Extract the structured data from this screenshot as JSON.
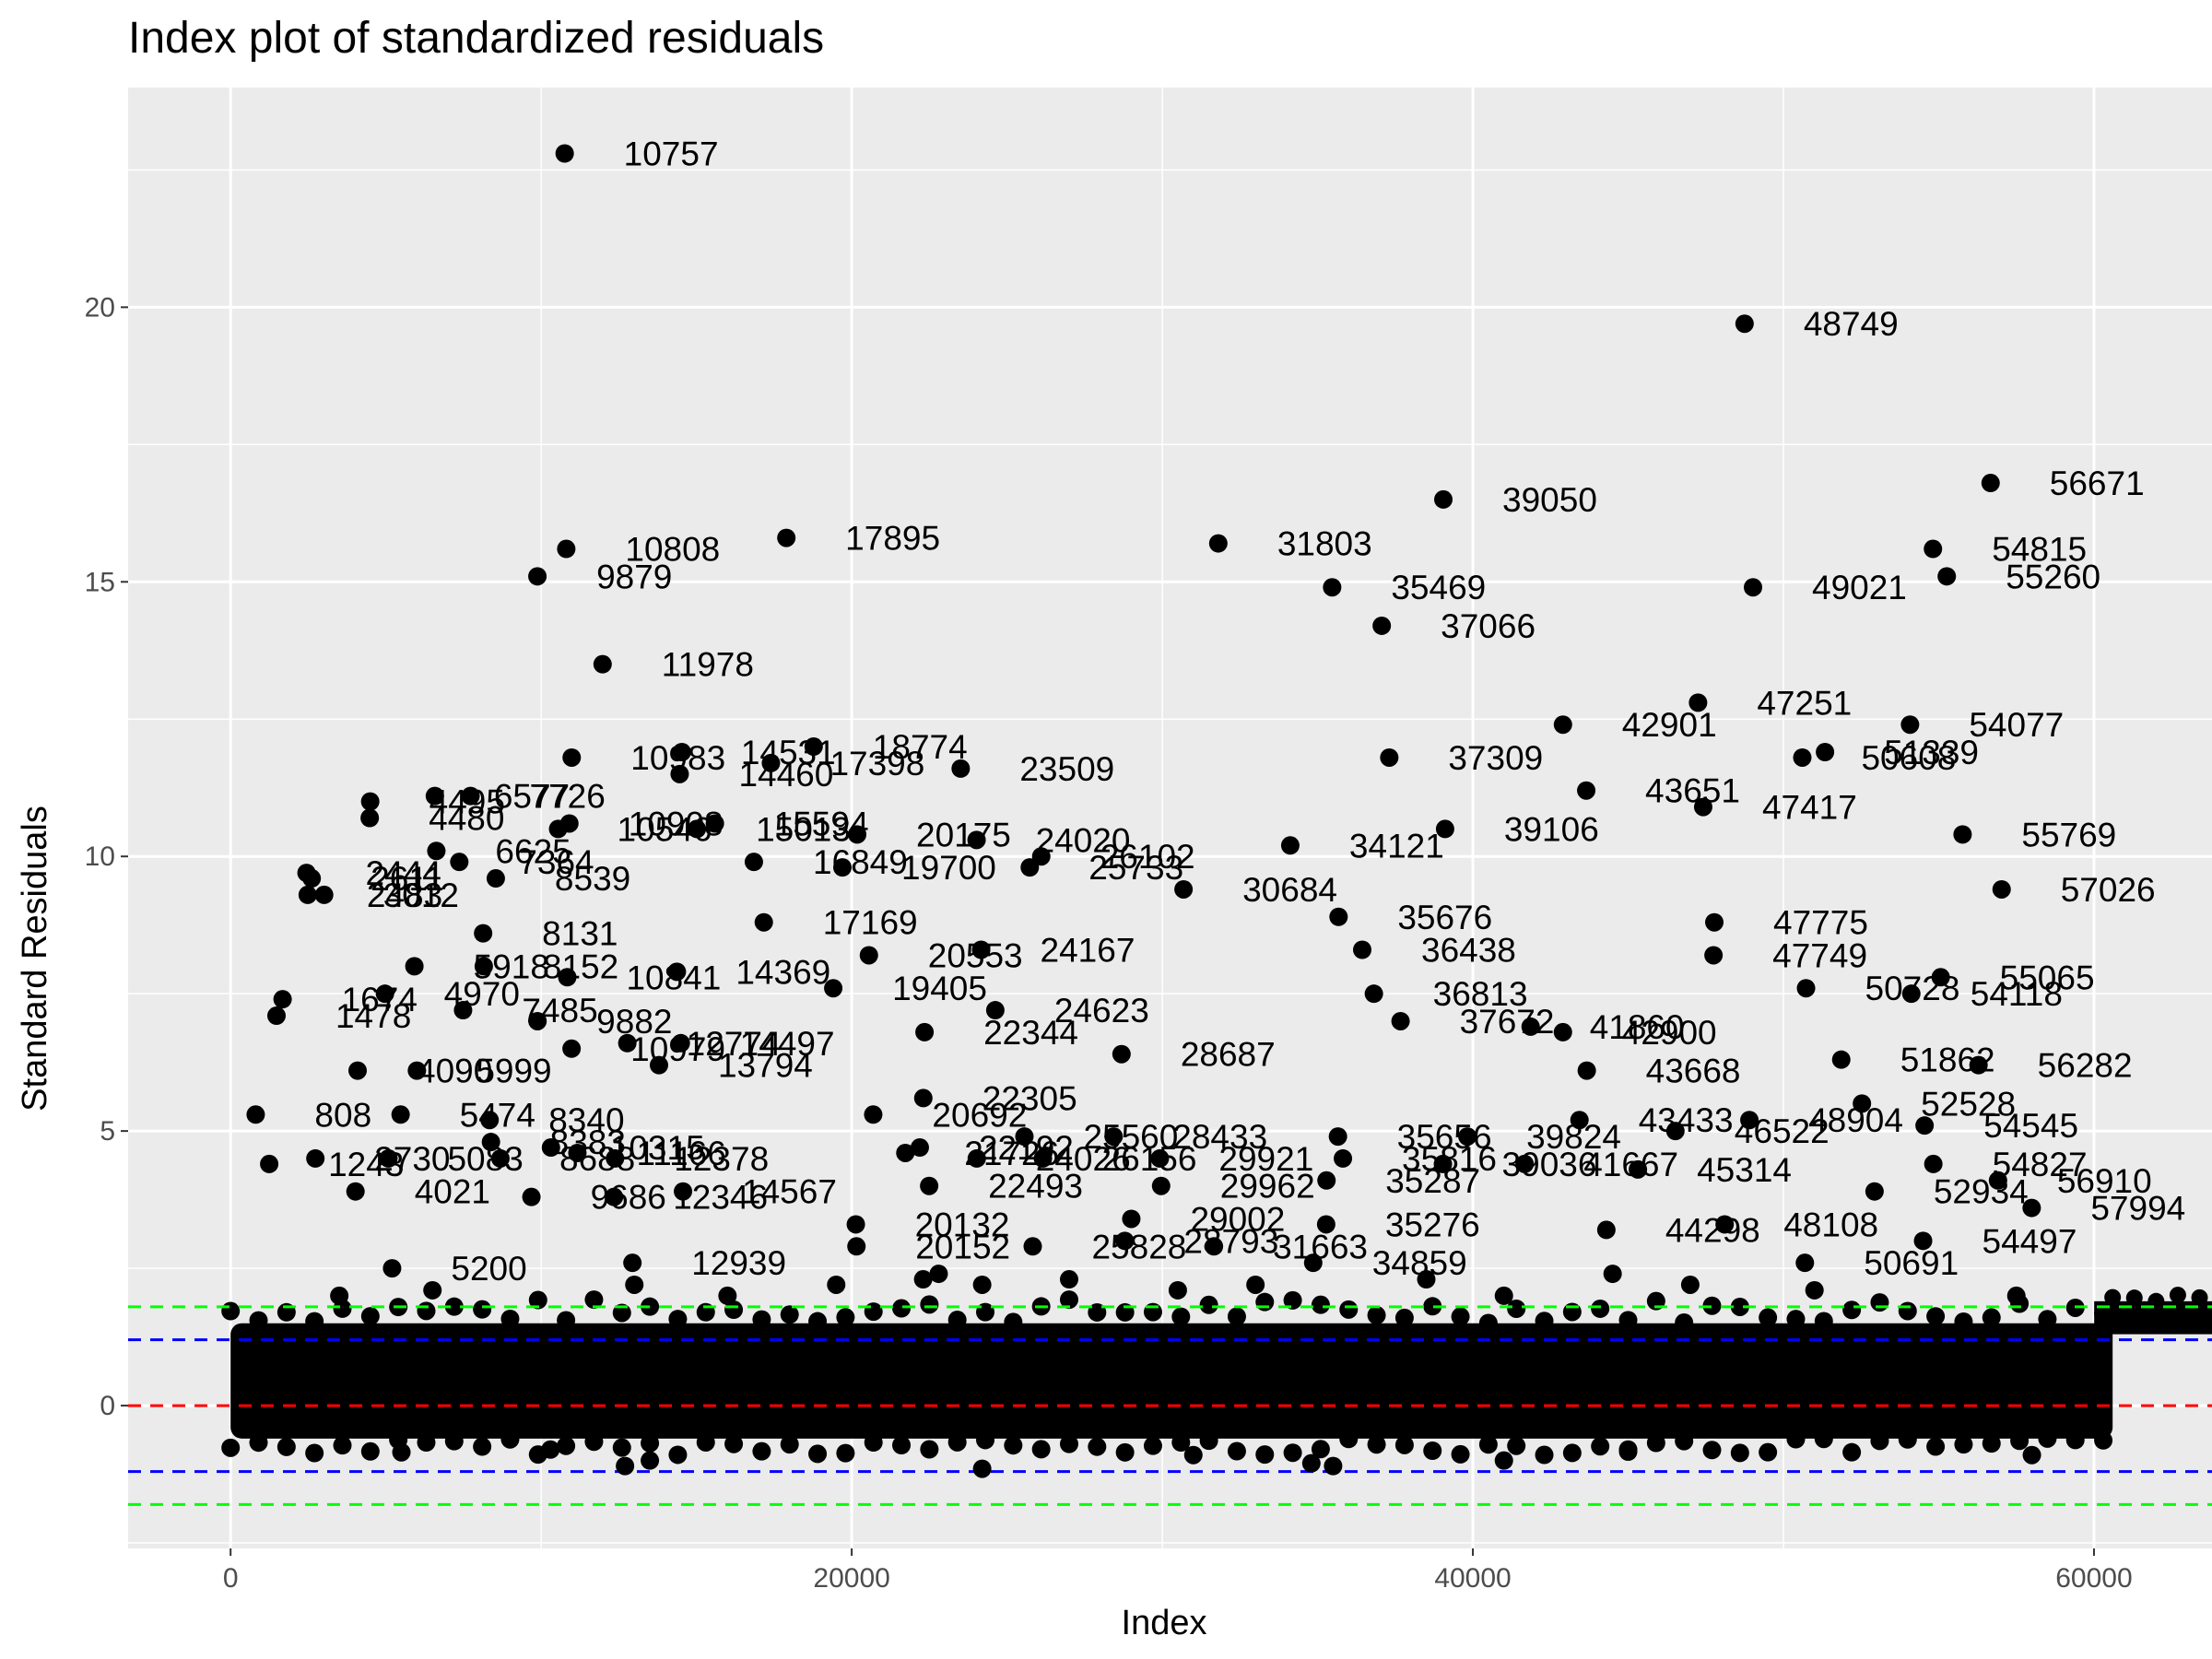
{
  "chart_data": {
    "type": "scatter",
    "title": "Index plot of standardized residuals",
    "xlabel": "Index",
    "ylabel": "Standard Residuals",
    "xlim": [
      -3300,
      63800
    ],
    "ylim": [
      -2.6,
      24.0
    ],
    "x_ticks": [
      0,
      20000,
      40000,
      60000
    ],
    "y_ticks": [
      0,
      5,
      10,
      15,
      20
    ],
    "grid": true,
    "legend": "none",
    "reference_lines": [
      {
        "y": 0,
        "color": "#ff0000",
        "style": "dashed"
      },
      {
        "y": 1.2,
        "color": "#0000ff",
        "style": "dashed"
      },
      {
        "y": -1.2,
        "color": "#0000ff",
        "style": "dashed"
      },
      {
        "y": 1.8,
        "color": "#00ff00",
        "style": "dashed"
      },
      {
        "y": -1.8,
        "color": "#00ff00",
        "style": "dashed"
      }
    ],
    "dense_band": {
      "x_start": 0,
      "x_end": 60600,
      "y_low": -0.6,
      "y_high": 1.5,
      "x_tail_end": 63800,
      "y_tail_low": 1.3,
      "y_tail_high": 1.9
    },
    "labeled_points": [
      {
        "label": "10757",
        "x": 10757,
        "y": 22.8
      },
      {
        "label": "48749",
        "x": 48749,
        "y": 19.7
      },
      {
        "label": "56671",
        "x": 56671,
        "y": 16.8
      },
      {
        "label": "39050",
        "x": 39050,
        "y": 16.5
      },
      {
        "label": "17895",
        "x": 17895,
        "y": 15.8
      },
      {
        "label": "31803",
        "x": 31803,
        "y": 15.7
      },
      {
        "label": "10808",
        "x": 10808,
        "y": 15.6
      },
      {
        "label": "54815",
        "x": 54815,
        "y": 15.6
      },
      {
        "label": "9879",
        "x": 9879,
        "y": 15.1
      },
      {
        "label": "55260",
        "x": 55260,
        "y": 15.1
      },
      {
        "label": "35469",
        "x": 35469,
        "y": 14.9
      },
      {
        "label": "49021",
        "x": 49021,
        "y": 14.9
      },
      {
        "label": "37066",
        "x": 37066,
        "y": 14.2
      },
      {
        "label": "11978",
        "x": 11978,
        "y": 13.5
      },
      {
        "label": "47251",
        "x": 47251,
        "y": 12.8
      },
      {
        "label": "42901",
        "x": 42901,
        "y": 12.4
      },
      {
        "label": "54077",
        "x": 54077,
        "y": 12.4
      },
      {
        "label": "18774",
        "x": 18774,
        "y": 12.0
      },
      {
        "label": "14531",
        "x": 14531,
        "y": 11.9
      },
      {
        "label": "51339",
        "x": 51339,
        "y": 11.9
      },
      {
        "label": "37309",
        "x": 37309,
        "y": 11.8
      },
      {
        "label": "10983",
        "x": 10983,
        "y": 11.8
      },
      {
        "label": "50608",
        "x": 50608,
        "y": 11.8
      },
      {
        "label": "17398",
        "x": 17398,
        "y": 11.7
      },
      {
        "label": "23509",
        "x": 23509,
        "y": 11.6
      },
      {
        "label": "14460",
        "x": 14460,
        "y": 11.5
      },
      {
        "label": "43651",
        "x": 43651,
        "y": 11.2
      },
      {
        "label": "4495",
        "x": 4495,
        "y": 11.0
      },
      {
        "label": "6577",
        "x": 6577,
        "y": 11.1
      },
      {
        "label": "7726",
        "x": 7726,
        "y": 11.1
      },
      {
        "label": "47417",
        "x": 47417,
        "y": 10.9
      },
      {
        "label": "4480",
        "x": 4480,
        "y": 10.7
      },
      {
        "label": "10908",
        "x": 10908,
        "y": 10.6
      },
      {
        "label": "15594",
        "x": 15594,
        "y": 10.6
      },
      {
        "label": "10546",
        "x": 10546,
        "y": 10.5
      },
      {
        "label": "15013",
        "x": 15013,
        "y": 10.5
      },
      {
        "label": "39106",
        "x": 39106,
        "y": 10.5
      },
      {
        "label": "20175",
        "x": 20175,
        "y": 10.4
      },
      {
        "label": "24020",
        "x": 24020,
        "y": 10.3
      },
      {
        "label": "55769",
        "x": 55769,
        "y": 10.4
      },
      {
        "label": "6625",
        "x": 6625,
        "y": 10.1
      },
      {
        "label": "34121",
        "x": 34121,
        "y": 10.2
      },
      {
        "label": "26102",
        "x": 26102,
        "y": 10.0
      },
      {
        "label": "16849",
        "x": 16849,
        "y": 9.9
      },
      {
        "label": "19700",
        "x": 19700,
        "y": 9.8
      },
      {
        "label": "25733",
        "x": 25733,
        "y": 9.8
      },
      {
        "label": "7364",
        "x": 7364,
        "y": 9.9
      },
      {
        "label": "2444",
        "x": 2444,
        "y": 9.7
      },
      {
        "label": "2611",
        "x": 2611,
        "y": 9.6
      },
      {
        "label": "8539",
        "x": 8539,
        "y": 9.6
      },
      {
        "label": "3012",
        "x": 3012,
        "y": 9.3
      },
      {
        "label": "2483",
        "x": 2483,
        "y": 9.3
      },
      {
        "label": "30684",
        "x": 30684,
        "y": 9.4
      },
      {
        "label": "57026",
        "x": 57026,
        "y": 9.4
      },
      {
        "label": "8131",
        "x": 8131,
        "y": 8.6
      },
      {
        "label": "17169",
        "x": 17169,
        "y": 8.8
      },
      {
        "label": "35676",
        "x": 35676,
        "y": 8.9
      },
      {
        "label": "47775",
        "x": 47775,
        "y": 8.8
      },
      {
        "label": "5918",
        "x": 5918,
        "y": 8.0
      },
      {
        "label": "8152",
        "x": 8152,
        "y": 8.0
      },
      {
        "label": "20553",
        "x": 20553,
        "y": 8.2
      },
      {
        "label": "24167",
        "x": 24167,
        "y": 8.3
      },
      {
        "label": "36438",
        "x": 36438,
        "y": 8.3
      },
      {
        "label": "47749",
        "x": 47749,
        "y": 8.2
      },
      {
        "label": "14369",
        "x": 14369,
        "y": 7.9
      },
      {
        "label": "10841",
        "x": 10841,
        "y": 7.8
      },
      {
        "label": "19405",
        "x": 19405,
        "y": 7.6
      },
      {
        "label": "1674",
        "x": 1674,
        "y": 7.4
      },
      {
        "label": "4970",
        "x": 4970,
        "y": 7.5
      },
      {
        "label": "7485",
        "x": 7485,
        "y": 7.2
      },
      {
        "label": "1478",
        "x": 1478,
        "y": 7.1
      },
      {
        "label": "36813",
        "x": 36813,
        "y": 7.5
      },
      {
        "label": "50728",
        "x": 50728,
        "y": 7.6
      },
      {
        "label": "54118",
        "x": 54118,
        "y": 7.5
      },
      {
        "label": "55065",
        "x": 55065,
        "y": 7.8
      },
      {
        "label": "9882",
        "x": 9882,
        "y": 7.0
      },
      {
        "label": "24623",
        "x": 24623,
        "y": 7.2
      },
      {
        "label": "37672",
        "x": 37672,
        "y": 7.0
      },
      {
        "label": "41860",
        "x": 41860,
        "y": 6.9
      },
      {
        "label": "42900",
        "x": 42900,
        "y": 6.8
      },
      {
        "label": "22344",
        "x": 22344,
        "y": 6.8
      },
      {
        "label": "14497",
        "x": 14497,
        "y": 6.6
      },
      {
        "label": "12774",
        "x": 12774,
        "y": 6.6
      },
      {
        "label": "13794",
        "x": 13794,
        "y": 6.2
      },
      {
        "label": "28687",
        "x": 28687,
        "y": 6.4
      },
      {
        "label": "51862",
        "x": 51862,
        "y": 6.3
      },
      {
        "label": "56282",
        "x": 56282,
        "y": 6.2
      },
      {
        "label": "10979",
        "x": 10979,
        "y": 6.5
      },
      {
        "label": "5999",
        "x": 5999,
        "y": 6.1
      },
      {
        "label": "4090",
        "x": 4090,
        "y": 6.1
      },
      {
        "label": "43668",
        "x": 43668,
        "y": 6.1
      },
      {
        "label": "22305",
        "x": 22305,
        "y": 5.6
      },
      {
        "label": "52528",
        "x": 52528,
        "y": 5.5
      },
      {
        "label": "808",
        "x": 808,
        "y": 5.3
      },
      {
        "label": "5474",
        "x": 5474,
        "y": 5.3
      },
      {
        "label": "8340",
        "x": 8340,
        "y": 5.2
      },
      {
        "label": "20692",
        "x": 20692,
        "y": 5.3
      },
      {
        "label": "43433",
        "x": 43433,
        "y": 5.2
      },
      {
        "label": "48904",
        "x": 48904,
        "y": 5.2
      },
      {
        "label": "54545",
        "x": 54545,
        "y": 5.1
      },
      {
        "label": "25560",
        "x": 25560,
        "y": 4.9
      },
      {
        "label": "28433",
        "x": 28433,
        "y": 4.9
      },
      {
        "label": "35656",
        "x": 35656,
        "y": 4.9
      },
      {
        "label": "39824",
        "x": 39824,
        "y": 4.9
      },
      {
        "label": "46522",
        "x": 46522,
        "y": 5.0
      },
      {
        "label": "8383",
        "x": 8383,
        "y": 4.8
      },
      {
        "label": "10315",
        "x": 10315,
        "y": 4.7
      },
      {
        "label": "11166",
        "x": 11166,
        "y": 4.6
      },
      {
        "label": "12378",
        "x": 12378,
        "y": 4.5
      },
      {
        "label": "1243",
        "x": 1243,
        "y": 4.4
      },
      {
        "label": "2730",
        "x": 2730,
        "y": 4.5
      },
      {
        "label": "5083",
        "x": 5083,
        "y": 4.5
      },
      {
        "label": "8688",
        "x": 8688,
        "y": 4.5
      },
      {
        "label": "22192",
        "x": 22192,
        "y": 4.7
      },
      {
        "label": "21726",
        "x": 21726,
        "y": 4.6
      },
      {
        "label": "24026",
        "x": 24026,
        "y": 4.5
      },
      {
        "label": "26156",
        "x": 26156,
        "y": 4.5
      },
      {
        "label": "29921",
        "x": 29921,
        "y": 4.5
      },
      {
        "label": "35816",
        "x": 35816,
        "y": 4.5
      },
      {
        "label": "39036",
        "x": 39036,
        "y": 4.4
      },
      {
        "label": "41667",
        "x": 41667,
        "y": 4.4
      },
      {
        "label": "45314",
        "x": 45314,
        "y": 4.3
      },
      {
        "label": "54827",
        "x": 54827,
        "y": 4.4
      },
      {
        "label": "56910",
        "x": 56910,
        "y": 4.1
      },
      {
        "label": "4021",
        "x": 4021,
        "y": 3.9
      },
      {
        "label": "9686",
        "x": 9686,
        "y": 3.8
      },
      {
        "label": "12346",
        "x": 12346,
        "y": 3.8
      },
      {
        "label": "14567",
        "x": 14567,
        "y": 3.9
      },
      {
        "label": "22493",
        "x": 22493,
        "y": 4.0
      },
      {
        "label": "29962",
        "x": 29962,
        "y": 4.0
      },
      {
        "label": "35287",
        "x": 35287,
        "y": 4.1
      },
      {
        "label": "52934",
        "x": 52934,
        "y": 3.9
      },
      {
        "label": "57994",
        "x": 57994,
        "y": 3.6
      },
      {
        "label": "20132",
        "x": 20132,
        "y": 3.3
      },
      {
        "label": "29002",
        "x": 29002,
        "y": 3.4
      },
      {
        "label": "35276",
        "x": 35276,
        "y": 3.3
      },
      {
        "label": "44298",
        "x": 44298,
        "y": 3.2
      },
      {
        "label": "48108",
        "x": 48108,
        "y": 3.3
      },
      {
        "label": "20152",
        "x": 20152,
        "y": 2.9
      },
      {
        "label": "25828",
        "x": 25828,
        "y": 2.9
      },
      {
        "label": "28793",
        "x": 28793,
        "y": 3.0
      },
      {
        "label": "31663",
        "x": 31663,
        "y": 2.9
      },
      {
        "label": "54497",
        "x": 54497,
        "y": 3.0
      },
      {
        "label": "12939",
        "x": 12939,
        "y": 2.6
      },
      {
        "label": "5200",
        "x": 5200,
        "y": 2.5
      },
      {
        "label": "34859",
        "x": 34859,
        "y": 2.6
      },
      {
        "label": "50691",
        "x": 50691,
        "y": 2.6
      }
    ],
    "unlabeled_outliers": [
      {
        "x": 22300,
        "y": 2.3
      },
      {
        "x": 22800,
        "y": 2.4
      },
      {
        "x": 24200,
        "y": 2.2
      },
      {
        "x": 19500,
        "y": 2.2
      },
      {
        "x": 3500,
        "y": 2.0
      },
      {
        "x": 6500,
        "y": 2.1
      },
      {
        "x": 13000,
        "y": 2.2
      },
      {
        "x": 16000,
        "y": 2.0
      },
      {
        "x": 27000,
        "y": 2.3
      },
      {
        "x": 30500,
        "y": 2.1
      },
      {
        "x": 33000,
        "y": 2.2
      },
      {
        "x": 38500,
        "y": 2.3
      },
      {
        "x": 41000,
        "y": 2.0
      },
      {
        "x": 44500,
        "y": 2.4
      },
      {
        "x": 47000,
        "y": 2.2
      },
      {
        "x": 51000,
        "y": 2.1
      },
      {
        "x": 57500,
        "y": 2.0
      },
      {
        "x": 12700,
        "y": -1.1
      },
      {
        "x": 13500,
        "y": -1.0
      },
      {
        "x": 24200,
        "y": -1.15
      },
      {
        "x": 34800,
        "y": -1.05
      },
      {
        "x": 35500,
        "y": -1.1
      },
      {
        "x": 41000,
        "y": -1.0
      },
      {
        "x": 5500,
        "y": -0.85
      },
      {
        "x": 10300,
        "y": -0.8
      },
      {
        "x": 31000,
        "y": -0.9
      },
      {
        "x": 45000,
        "y": -0.8
      },
      {
        "x": 58000,
        "y": -0.9
      }
    ]
  }
}
